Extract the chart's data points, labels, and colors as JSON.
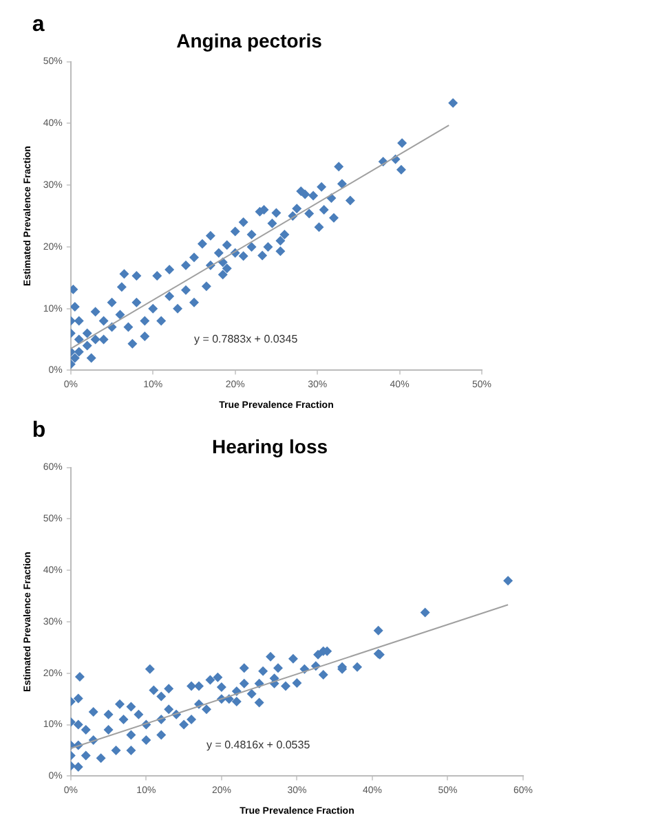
{
  "chart_data": [
    {
      "type": "scatter",
      "title": "Angina pectoris",
      "xlabel": "True Prevalence Fraction",
      "ylabel": "Estimated Prevalence Fraction",
      "annotations": [
        "a",
        "y = 0.7883x + 0.0345"
      ],
      "xlim": [
        0,
        50
      ],
      "ylim": [
        0,
        50
      ],
      "xticks": [
        {
          "value": 0,
          "label": "0%"
        },
        {
          "value": 10,
          "label": "10%"
        },
        {
          "value": 20,
          "label": "20%"
        },
        {
          "value": 30,
          "label": "30%"
        },
        {
          "value": 40,
          "label": "40%"
        },
        {
          "value": 50,
          "label": "50%"
        }
      ],
      "yticks": [
        {
          "value": 0,
          "label": "0%"
        },
        {
          "value": 10,
          "label": "10%"
        },
        {
          "value": 20,
          "label": "20%"
        },
        {
          "value": 30,
          "label": "30%"
        },
        {
          "value": 40,
          "label": "40%"
        },
        {
          "value": 50,
          "label": "50%"
        }
      ],
      "grid": false,
      "legend": false,
      "series": [
        {
          "type": "scatter",
          "color": "#4a7ebb",
          "marker": "diamond",
          "x": [
            0.3,
            46.5,
            40.3,
            40.2,
            39.5,
            38,
            32.6,
            33,
            34,
            32,
            30.2,
            30.8,
            29,
            28.5,
            28,
            29.5,
            31.7,
            30.5,
            27.5,
            27,
            25.5,
            25.5,
            23.3,
            24.5,
            23.5,
            23,
            25,
            22,
            21,
            20,
            19,
            18.5,
            18.5,
            17,
            16,
            15,
            14,
            16.5,
            12,
            10.5,
            8,
            6.5,
            6.2,
            5,
            7.5,
            3,
            2,
            1,
            0.5,
            0,
            0,
            1,
            2.5,
            4,
            10,
            12,
            14,
            11,
            9,
            5,
            3,
            1,
            0,
            0.5,
            15,
            13,
            8,
            6,
            20,
            22,
            21,
            18,
            24,
            26,
            17,
            19,
            2,
            4,
            7,
            9,
            0
          ],
          "values": [
            13.1,
            43.3,
            36.8,
            32.5,
            34.2,
            33.8,
            33,
            30.2,
            27.5,
            24.7,
            23.2,
            26,
            25.4,
            28.5,
            29,
            28.3,
            27.9,
            29.7,
            26.2,
            25,
            21,
            19.3,
            18.6,
            23.8,
            26,
            25.7,
            25.5,
            22,
            24,
            22.5,
            20.3,
            17.5,
            15.5,
            21.8,
            20.5,
            18.3,
            17,
            13.6,
            16.3,
            15.3,
            15.3,
            15.6,
            13.5,
            11,
            4.3,
            9.5,
            6,
            8,
            10.3,
            1,
            6,
            3,
            2,
            5,
            10,
            12,
            13,
            8,
            8,
            7,
            5,
            5,
            3,
            2,
            11,
            10,
            11,
            9,
            19,
            20,
            18.5,
            19,
            20,
            22,
            17,
            16.5,
            4,
            8,
            7,
            5.5,
            8
          ]
        },
        {
          "type": "line",
          "color": "#a0a0a0",
          "marker": "none",
          "x": [
            0,
            46
          ],
          "values": [
            3.5,
            39.7
          ]
        }
      ]
    },
    {
      "type": "scatter",
      "title": "Hearing loss",
      "xlabel": "True Prevalence Fraction",
      "ylabel": "Estimated Prevalence Fraction",
      "annotations": [
        "b",
        "y = 0.4816x + 0.0535"
      ],
      "xlim": [
        0,
        60
      ],
      "ylim": [
        0,
        60
      ],
      "xticks": [
        {
          "value": 0,
          "label": "0%"
        },
        {
          "value": 10,
          "label": "10%"
        },
        {
          "value": 20,
          "label": "20%"
        },
        {
          "value": 30,
          "label": "30%"
        },
        {
          "value": 40,
          "label": "40%"
        },
        {
          "value": 50,
          "label": "50%"
        },
        {
          "value": 60,
          "label": "60%"
        }
      ],
      "yticks": [
        {
          "value": 0,
          "label": "0%"
        },
        {
          "value": 10,
          "label": "10%"
        },
        {
          "value": 20,
          "label": "20%"
        },
        {
          "value": 30,
          "label": "30%"
        },
        {
          "value": 40,
          "label": "40%"
        },
        {
          "value": 50,
          "label": "50%"
        },
        {
          "value": 60,
          "label": "60%"
        }
      ],
      "grid": false,
      "legend": false,
      "series": [
        {
          "type": "scatter",
          "color": "#4a7ebb",
          "marker": "diamond",
          "x": [
            58,
            47,
            40.8,
            41,
            40.8,
            38,
            36,
            36,
            34,
            33.5,
            32.8,
            32.5,
            33.5,
            31,
            30,
            29.5,
            28.5,
            27.5,
            26.5,
            27,
            27,
            25.5,
            25,
            25,
            23,
            23,
            22,
            22,
            21,
            19.5,
            18.5,
            20,
            17,
            16,
            18,
            16,
            13,
            11,
            10.5,
            12,
            1.2,
            0,
            1,
            6.5,
            8,
            3,
            0,
            0,
            0,
            1,
            2,
            3,
            5,
            4,
            6,
            8,
            10,
            12,
            14,
            8,
            10,
            12,
            15,
            7,
            2,
            1,
            5,
            0,
            1,
            20,
            24,
            17,
            13,
            9
          ],
          "values": [
            38,
            31.8,
            28.3,
            23.6,
            23.8,
            21.2,
            21.2,
            20.8,
            24.3,
            24.3,
            23.6,
            21.4,
            19.7,
            20.8,
            18.1,
            22.8,
            17.5,
            21,
            23.2,
            19,
            18,
            20.4,
            18,
            14.3,
            21,
            18,
            16.5,
            14.5,
            15,
            19.2,
            18.7,
            17.3,
            17.5,
            17.5,
            13,
            11,
            17,
            16.7,
            20.8,
            15.5,
            19.3,
            14.5,
            15.1,
            14,
            13.5,
            12.5,
            10.5,
            6,
            2,
            1.8,
            4,
            7,
            9,
            3.5,
            5,
            8,
            10,
            11,
            12,
            5,
            7,
            8,
            10,
            11,
            9,
            6,
            12,
            4,
            10,
            15,
            16,
            14,
            13,
            12
          ]
        },
        {
          "type": "line",
          "color": "#a0a0a0",
          "marker": "none",
          "x": [
            0,
            58
          ],
          "values": [
            5.4,
            33.3
          ]
        }
      ]
    }
  ]
}
